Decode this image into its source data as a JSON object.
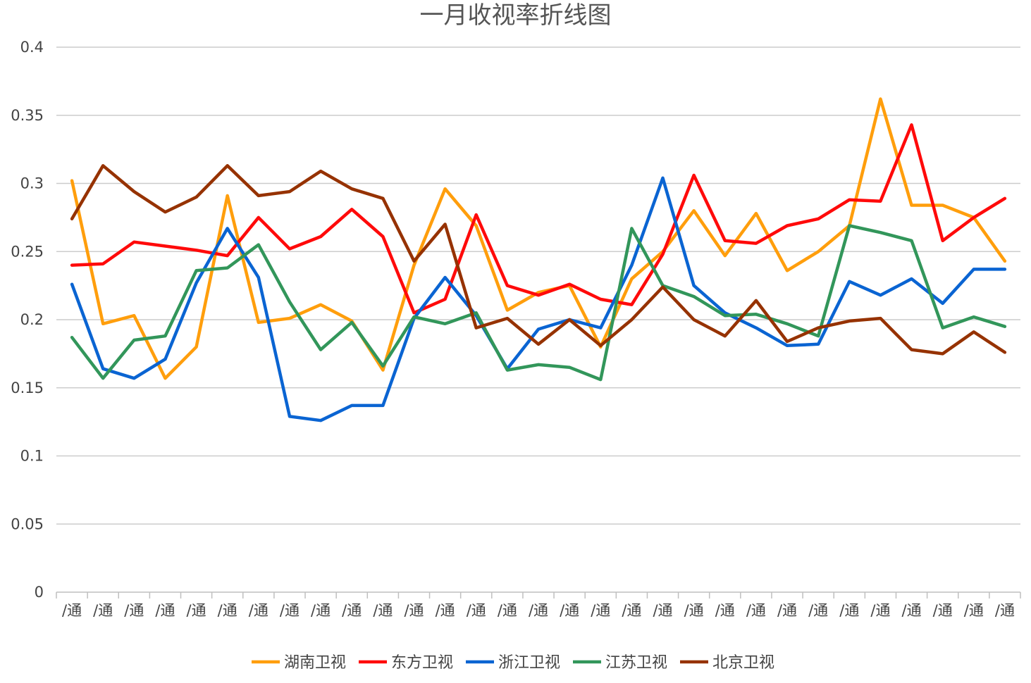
{
  "chart_data": {
    "type": "line",
    "title": "一月收视率折线图",
    "xlabel": "",
    "ylabel": "",
    "ylim": [
      0,
      0.4
    ],
    "yticks": [
      "0",
      "0.05",
      "0.1",
      "0.15",
      "0.2",
      "0.25",
      "0.3",
      "0.35",
      "0.4"
    ],
    "grid": true,
    "legend_position": "bottom",
    "categories": [
      "/通",
      "/通",
      "/通",
      "/通",
      "/通",
      "/通",
      "/通",
      "/通",
      "/通",
      "/通",
      "/通",
      "/通",
      "/通",
      "/通",
      "/通",
      "/通",
      "/通",
      "/通",
      "/通",
      "/通",
      "/通",
      "/通",
      "/通",
      "/通",
      "/通",
      "/通",
      "/通",
      "/通",
      "/通",
      "/通",
      "/通"
    ],
    "series": [
      {
        "name": "湖南卫视",
        "color": "#FF9E0C",
        "values": [
          0.302,
          0.197,
          0.203,
          0.157,
          0.18,
          0.291,
          0.198,
          0.201,
          0.211,
          0.199,
          0.163,
          0.24,
          0.296,
          0.269,
          0.207,
          0.22,
          0.225,
          0.18,
          0.23,
          0.25,
          0.28,
          0.247,
          0.278,
          0.236,
          0.25,
          0.269,
          0.362,
          0.284,
          0.284,
          0.275,
          0.243
        ]
      },
      {
        "name": "东方卫视",
        "color": "#FF0A0A",
        "values": [
          0.24,
          0.241,
          0.257,
          0.254,
          0.251,
          0.247,
          0.275,
          0.252,
          0.261,
          0.281,
          0.261,
          0.205,
          0.215,
          0.277,
          0.225,
          0.218,
          0.226,
          0.215,
          0.211,
          0.248,
          0.306,
          0.258,
          0.256,
          0.269,
          0.274,
          0.288,
          0.287,
          0.343,
          0.258,
          0.275,
          0.289
        ]
      },
      {
        "name": "浙江卫视",
        "color": "#0A64D2",
        "values": [
          0.226,
          0.164,
          0.157,
          0.171,
          0.227,
          0.267,
          0.231,
          0.129,
          0.126,
          0.137,
          0.137,
          0.201,
          0.231,
          0.203,
          0.164,
          0.193,
          0.2,
          0.194,
          0.24,
          0.304,
          0.225,
          0.205,
          0.194,
          0.181,
          0.182,
          0.228,
          0.218,
          0.23,
          0.212,
          0.237,
          0.237
        ]
      },
      {
        "name": "江苏卫视",
        "color": "#32965A",
        "values": [
          0.187,
          0.157,
          0.185,
          0.188,
          0.236,
          0.238,
          0.255,
          0.213,
          0.178,
          0.198,
          0.166,
          0.202,
          0.197,
          0.205,
          0.163,
          0.167,
          0.165,
          0.156,
          0.267,
          0.225,
          0.217,
          0.203,
          0.204,
          0.197,
          0.188,
          0.269,
          0.264,
          0.258,
          0.194,
          0.202,
          0.195
        ]
      },
      {
        "name": "北京卫视",
        "color": "#963200",
        "values": [
          0.274,
          0.313,
          0.294,
          0.279,
          0.29,
          0.313,
          0.291,
          0.294,
          0.309,
          0.296,
          0.289,
          0.243,
          0.27,
          0.194,
          0.201,
          0.182,
          0.2,
          0.181,
          0.2,
          0.224,
          0.2,
          0.188,
          0.214,
          0.184,
          0.194,
          0.199,
          0.201,
          0.178,
          0.175,
          0.191,
          0.176
        ]
      }
    ]
  }
}
